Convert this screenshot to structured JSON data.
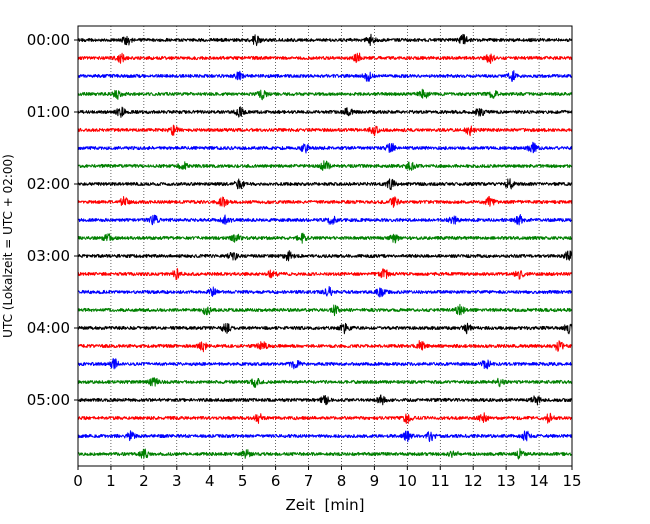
{
  "chart_data": {
    "type": "line",
    "title": "",
    "xlabel": "Zeit  [min]",
    "ylabel": "UTC (Lokalzeit = UTC + 02:00)",
    "xlim": [
      0,
      15
    ],
    "x_ticks": [
      "0",
      "1",
      "2",
      "3",
      "4",
      "5",
      "6",
      "7",
      "8",
      "9",
      "10",
      "11",
      "12",
      "13",
      "14",
      "15"
    ],
    "y_tick_labels": [
      "00:00",
      "01:00",
      "02:00",
      "03:00",
      "04:00",
      "05:00"
    ],
    "grid": "vertical dotted",
    "trace_colors": [
      "#000000",
      "#ff0000",
      "#0000ff",
      "#008000"
    ],
    "traces": [
      {
        "start": "00:00",
        "events_min": [
          1.5,
          5.4,
          8.9,
          11.7
        ]
      },
      {
        "start": "00:15",
        "events_min": [
          1.3,
          8.5,
          12.5
        ]
      },
      {
        "start": "00:30",
        "events_min": [
          4.9,
          8.8,
          13.2
        ]
      },
      {
        "start": "00:45",
        "events_min": [
          1.2,
          5.6,
          10.5,
          12.6
        ]
      },
      {
        "start": "01:00",
        "events_min": [
          1.3,
          4.9,
          8.2,
          12.2
        ]
      },
      {
        "start": "01:15",
        "events_min": [
          2.9,
          9.0,
          11.9
        ]
      },
      {
        "start": "01:30",
        "events_min": [
          6.9,
          9.5,
          13.8
        ]
      },
      {
        "start": "01:45",
        "events_min": [
          3.2,
          7.5,
          10.1
        ]
      },
      {
        "start": "02:00",
        "events_min": [
          4.9,
          9.5,
          13.1
        ]
      },
      {
        "start": "02:15",
        "events_min": [
          1.4,
          4.4,
          9.6,
          12.5
        ]
      },
      {
        "start": "02:30",
        "events_min": [
          2.3,
          4.5,
          7.7,
          11.4,
          13.4
        ]
      },
      {
        "start": "02:45",
        "events_min": [
          0.9,
          4.8,
          6.8,
          9.6
        ]
      },
      {
        "start": "03:00",
        "events_min": [
          4.7,
          6.4,
          14.9
        ]
      },
      {
        "start": "03:15",
        "events_min": [
          3.0,
          5.9,
          9.3,
          13.4
        ]
      },
      {
        "start": "03:30",
        "events_min": [
          4.1,
          7.6,
          9.2
        ]
      },
      {
        "start": "03:45",
        "events_min": [
          3.9,
          7.8,
          11.6
        ]
      },
      {
        "start": "04:00",
        "events_min": [
          4.5,
          8.1,
          11.8,
          14.9
        ]
      },
      {
        "start": "04:15",
        "events_min": [
          3.8,
          5.6,
          10.4,
          14.6
        ]
      },
      {
        "start": "04:30",
        "events_min": [
          1.1,
          6.6,
          12.4
        ]
      },
      {
        "start": "04:45",
        "events_min": [
          2.3,
          5.4,
          12.8
        ]
      },
      {
        "start": "05:00",
        "events_min": [
          7.5,
          9.2,
          13.9
        ]
      },
      {
        "start": "05:15",
        "events_min": [
          5.5,
          10.0,
          12.3,
          14.3
        ]
      },
      {
        "start": "05:30",
        "events_min": [
          1.6,
          10.0,
          10.7,
          13.6
        ]
      },
      {
        "start": "05:45",
        "events_min": [
          2.0,
          5.1,
          11.4,
          13.4
        ]
      }
    ]
  }
}
